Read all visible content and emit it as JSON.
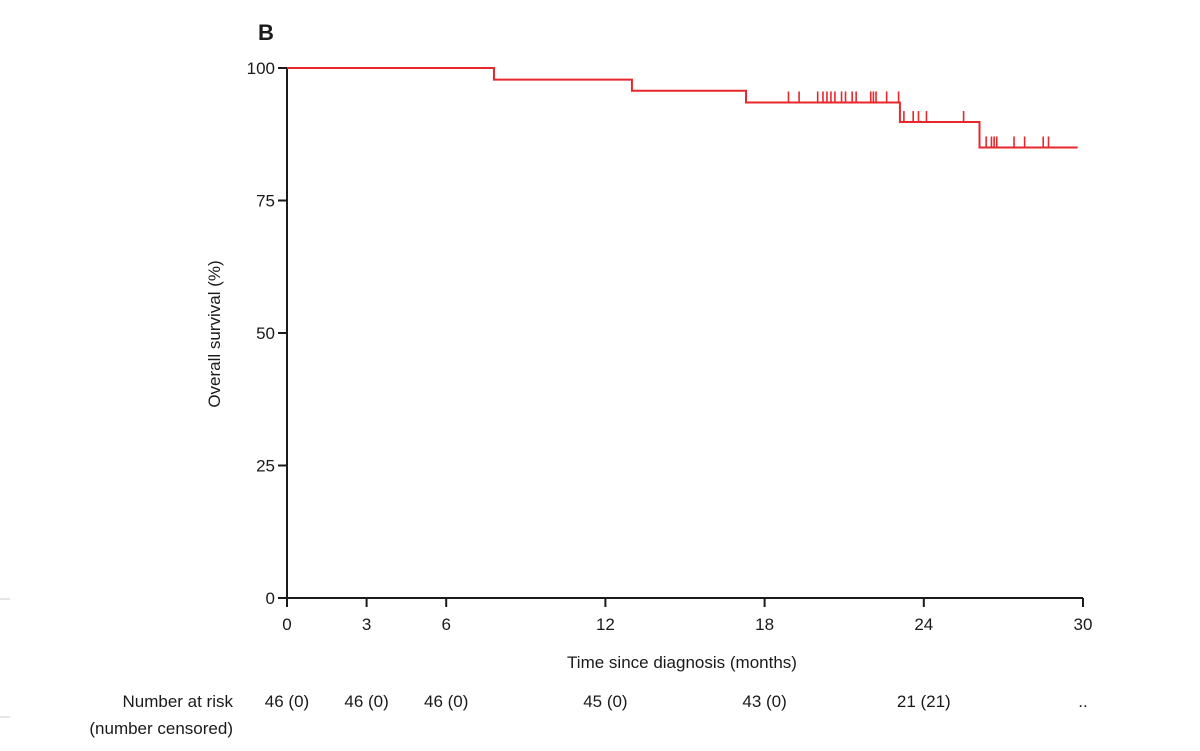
{
  "chart_data": {
    "type": "line",
    "panel_label": "B",
    "title": "",
    "xlabel": "Time since diagnosis  (months)",
    "ylabel": "Overall survival (%)",
    "xlim": [
      0,
      30
    ],
    "ylim": [
      0,
      100
    ],
    "x_ticks": [
      0,
      3,
      6,
      12,
      18,
      24,
      30
    ],
    "y_ticks": [
      0,
      25,
      50,
      75,
      100
    ],
    "grid": false,
    "series_color": "#e8272d",
    "series": [
      {
        "name": "Overall survival",
        "steps": [
          {
            "x": 0,
            "y": 100
          },
          {
            "x": 7.8,
            "y": 97.8
          },
          {
            "x": 13.0,
            "y": 95.7
          },
          {
            "x": 17.3,
            "y": 93.5
          },
          {
            "x": 23.1,
            "y": 89.8
          },
          {
            "x": 26.1,
            "y": 85.0
          }
        ],
        "end_x": 29.8,
        "censored": [
          {
            "x": 18.9,
            "y": 93.5
          },
          {
            "x": 19.3,
            "y": 93.5
          },
          {
            "x": 20.0,
            "y": 93.5
          },
          {
            "x": 20.2,
            "y": 93.5
          },
          {
            "x": 20.35,
            "y": 93.5
          },
          {
            "x": 20.5,
            "y": 93.5
          },
          {
            "x": 20.65,
            "y": 93.5
          },
          {
            "x": 20.9,
            "y": 93.5
          },
          {
            "x": 21.05,
            "y": 93.5
          },
          {
            "x": 21.3,
            "y": 93.5
          },
          {
            "x": 21.45,
            "y": 93.5
          },
          {
            "x": 22.0,
            "y": 93.5
          },
          {
            "x": 22.1,
            "y": 93.5
          },
          {
            "x": 22.2,
            "y": 93.5
          },
          {
            "x": 22.6,
            "y": 93.5
          },
          {
            "x": 23.05,
            "y": 93.5
          },
          {
            "x": 23.25,
            "y": 89.8
          },
          {
            "x": 23.6,
            "y": 89.8
          },
          {
            "x": 23.8,
            "y": 89.8
          },
          {
            "x": 24.1,
            "y": 89.8
          },
          {
            "x": 25.5,
            "y": 89.8
          },
          {
            "x": 26.35,
            "y": 85.0
          },
          {
            "x": 26.55,
            "y": 85.0
          },
          {
            "x": 26.65,
            "y": 85.0
          },
          {
            "x": 26.75,
            "y": 85.0
          },
          {
            "x": 27.4,
            "y": 85.0
          },
          {
            "x": 27.8,
            "y": 85.0
          },
          {
            "x": 28.5,
            "y": 85.0
          },
          {
            "x": 28.7,
            "y": 85.0
          }
        ]
      }
    ],
    "risk_table": {
      "header_line1": "Number at risk",
      "header_line2": "(number censored)",
      "entries": [
        {
          "x": 0,
          "label": "46 (0)"
        },
        {
          "x": 3,
          "label": "46 (0)"
        },
        {
          "x": 6,
          "label": "46 (0)"
        },
        {
          "x": 12,
          "label": "45 (0)"
        },
        {
          "x": 18,
          "label": "43 (0)"
        },
        {
          "x": 24,
          "label": "21 (21)"
        },
        {
          "x": 30,
          "label": ".."
        }
      ]
    }
  }
}
